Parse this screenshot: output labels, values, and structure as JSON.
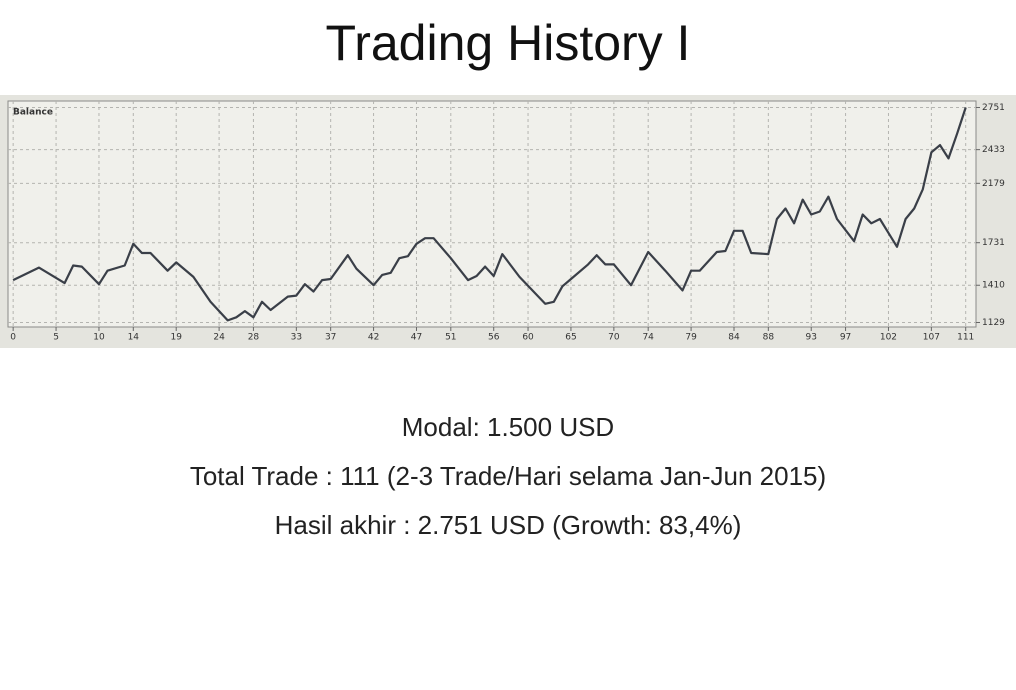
{
  "title": "Trading History I",
  "lines": [
    "Modal: 1.500 USD",
    "Total Trade : 111 (2-3 Trade/Hari selama Jan-Jun 2015)",
    "Hasil akhir : 2.751 USD (Growth: 83,4%)"
  ],
  "chart_data": {
    "type": "line",
    "x": [
      0,
      3,
      6,
      7,
      8,
      10,
      11,
      13,
      14,
      15,
      16,
      18,
      19,
      21,
      23,
      25,
      26,
      27,
      28,
      29,
      30,
      32,
      33,
      34,
      35,
      36,
      37,
      39,
      40,
      42,
      43,
      44,
      45,
      46,
      47,
      48,
      49,
      51,
      53,
      54,
      55,
      56,
      57,
      59,
      62,
      63,
      64,
      65,
      67,
      68,
      69,
      70,
      72,
      74,
      76,
      78,
      79,
      80,
      82,
      83,
      84,
      85,
      86,
      88,
      89,
      90,
      91,
      92,
      93,
      94,
      95,
      96,
      98,
      99,
      100,
      101,
      103,
      104,
      105,
      106,
      107,
      108,
      109,
      110,
      111
    ],
    "series": [
      {
        "name": "Balance",
        "color": "#3a3f48",
        "values": [
          1449,
          1543,
          1426,
          1559,
          1551,
          1418,
          1520,
          1559,
          1723,
          1653,
          1653,
          1520,
          1582,
          1473,
          1285,
          1145,
          1168,
          1215,
          1168,
          1285,
          1223,
          1324,
          1332,
          1418,
          1363,
          1449,
          1457,
          1637,
          1535,
          1410,
          1488,
          1504,
          1614,
          1629,
          1723,
          1765,
          1765,
          1614,
          1449,
          1480,
          1551,
          1480,
          1645,
          1473,
          1270,
          1285,
          1402,
          1457,
          1567,
          1637,
          1567,
          1567,
          1410,
          1661,
          1520,
          1371,
          1520,
          1520,
          1661,
          1668,
          1821,
          1821,
          1653,
          1645,
          1910,
          1989,
          1877,
          2056,
          1944,
          1966,
          2078,
          1910,
          1742,
          1944,
          1877,
          1910,
          1700,
          1910,
          1989,
          2134,
          2413,
          2467,
          2367,
          2553,
          2751
        ]
      }
    ],
    "xlim": [
      -0.6,
      112.2
    ],
    "xticks": [
      0,
      5,
      10,
      14,
      19,
      24,
      28,
      33,
      37,
      42,
      47,
      51,
      56,
      60,
      65,
      70,
      74,
      79,
      84,
      88,
      93,
      97,
      102,
      107,
      111
    ],
    "ylim": [
      1095,
      2800
    ],
    "yticks": [
      1129,
      1410,
      1731,
      2179,
      2433,
      2751
    ],
    "grid": true,
    "legend": "top-left"
  }
}
